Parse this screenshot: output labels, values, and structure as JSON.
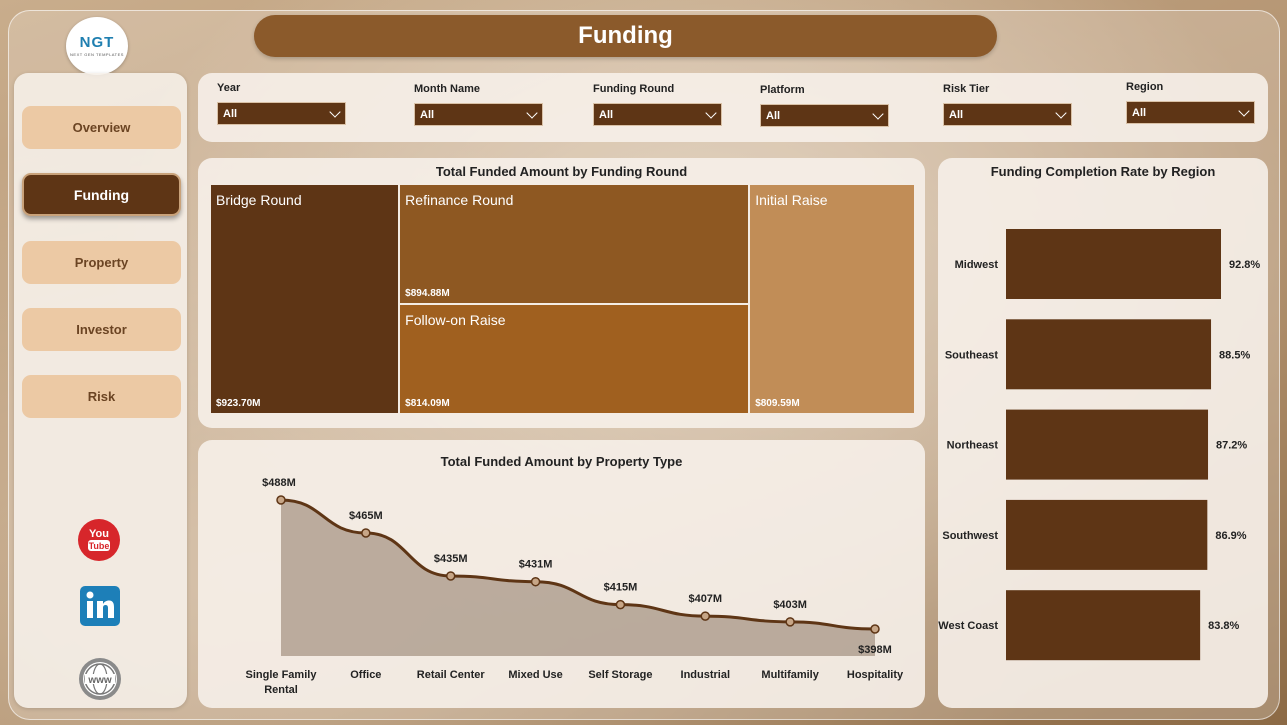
{
  "header": {
    "logo_text": "NGT",
    "logo_subtext": "NEXT GEN TEMPLATES",
    "title": "Funding"
  },
  "sidebar": {
    "items": [
      {
        "label": "Overview",
        "active": false
      },
      {
        "label": "Funding",
        "active": true
      },
      {
        "label": "Property",
        "active": false
      },
      {
        "label": "Investor",
        "active": false
      },
      {
        "label": "Risk",
        "active": false
      }
    ],
    "social": [
      {
        "icon": "youtube-icon",
        "text": "You Tube"
      },
      {
        "icon": "linkedin-icon",
        "text": "in"
      },
      {
        "icon": "globe-icon",
        "text": "www"
      }
    ]
  },
  "filters": [
    {
      "label": "Year",
      "value": "All"
    },
    {
      "label": "Month Name",
      "value": "All"
    },
    {
      "label": "Funding Round",
      "value": "All"
    },
    {
      "label": "Platform",
      "value": "All"
    },
    {
      "label": "Risk Tier",
      "value": "All"
    },
    {
      "label": "Region",
      "value": "All"
    }
  ],
  "colors": {
    "dark": "#5e3515",
    "mid": "#8e5822",
    "orange": "#a0601f",
    "light": "#c18d57",
    "accent": "#8b5a2b"
  },
  "chart_data": [
    {
      "type": "treemap",
      "title": "Total Funded Amount by Funding Round",
      "items": [
        {
          "name": "Bridge Round",
          "value": 923.7,
          "label": "$923.70M"
        },
        {
          "name": "Refinance Round",
          "value": 894.88,
          "label": "$894.88M"
        },
        {
          "name": "Follow-on Raise",
          "value": 814.09,
          "label": "$814.09M"
        },
        {
          "name": "Initial Raise",
          "value": 809.59,
          "label": "$809.59M"
        }
      ]
    },
    {
      "type": "bar",
      "orientation": "horizontal",
      "title": "Funding Completion Rate by Region",
      "categories": [
        "Midwest",
        "Southeast",
        "Northeast",
        "Southwest",
        "West Coast"
      ],
      "values": [
        92.8,
        88.5,
        87.2,
        86.9,
        83.8
      ],
      "labels": [
        "92.8%",
        "88.5%",
        "87.2%",
        "86.9%",
        "83.8%"
      ]
    },
    {
      "type": "area",
      "title": "Total Funded Amount by Property Type",
      "categories": [
        "Single Family Rental",
        "Office",
        "Retail Center",
        "Mixed Use",
        "Self Storage",
        "Industrial",
        "Multifamily",
        "Hospitality"
      ],
      "values": [
        488,
        465,
        435,
        431,
        415,
        407,
        403,
        398
      ],
      "labels": [
        "$488M",
        "$465M",
        "$435M",
        "$431M",
        "$415M",
        "$407M",
        "$403M",
        "$398M"
      ]
    }
  ]
}
